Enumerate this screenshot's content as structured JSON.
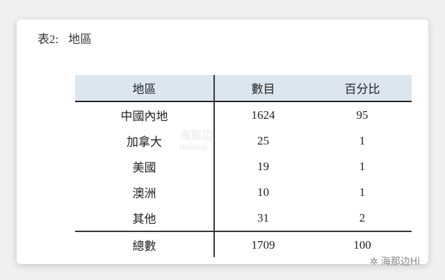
{
  "caption": {
    "label": "表2:",
    "title": "地區"
  },
  "table": {
    "headers": [
      "地區",
      "數目",
      "百分比"
    ],
    "rows": [
      [
        "中國內地",
        "1624",
        "95"
      ],
      [
        "加拿大",
        "25",
        "1"
      ],
      [
        "美國",
        "19",
        "1"
      ],
      [
        "澳洲",
        "10",
        "1"
      ],
      [
        "其他",
        "31",
        "2"
      ]
    ],
    "total": [
      "總數",
      "1709",
      "100"
    ]
  },
  "watermark": {
    "cn": "海那边",
    "en": "Hinabian"
  },
  "brand": {
    "icon": "wechat-icon",
    "text": "海那边Hi"
  },
  "colors": {
    "header_bg": "#dce6f1"
  }
}
